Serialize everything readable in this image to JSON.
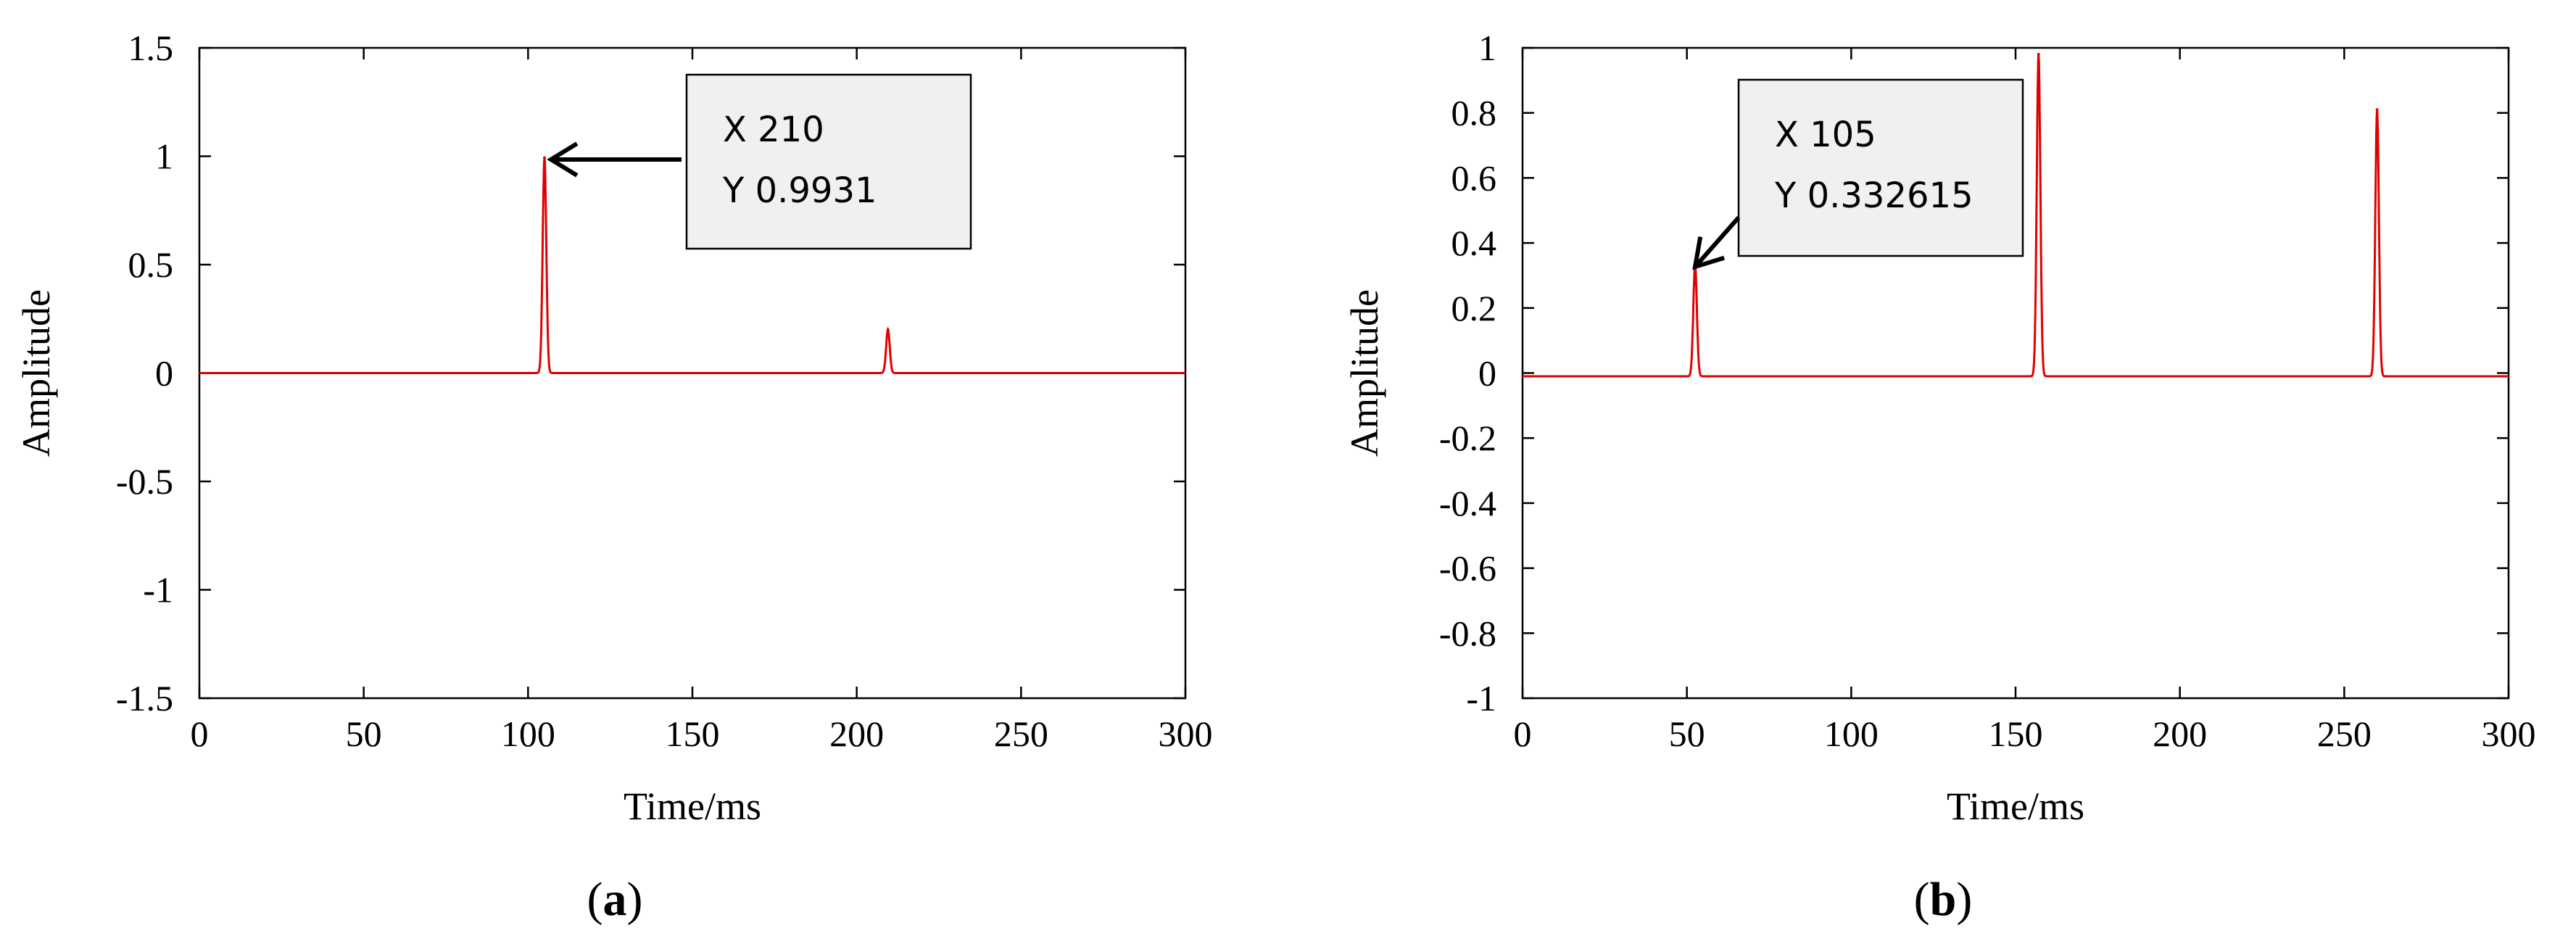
{
  "chart_data": [
    {
      "type": "line",
      "panel_label": "a",
      "xlabel": "Time/ms",
      "ylabel": "Amplitude",
      "xlim": [
        0,
        300
      ],
      "ylim": [
        -1.5,
        1.5
      ],
      "xticks": [
        0,
        50,
        100,
        150,
        200,
        250,
        300
      ],
      "xtick_labels": [
        "0",
        "50",
        "100",
        "150",
        "200",
        "250",
        "300"
      ],
      "yticks": [
        1.5,
        1,
        0.5,
        0,
        -0.5,
        -1,
        -1.5
      ],
      "ytick_labels": [
        "1.5",
        "1",
        "0.5",
        "0",
        "-0.5",
        "-1",
        "-1.5"
      ],
      "series_color": "#e00000",
      "baseline": 0,
      "peaks": [
        {
          "x": 105,
          "y": 0.9931
        },
        {
          "x": 209.5,
          "y": 0.2
        }
      ],
      "annotation": {
        "lines": [
          "X 210",
          "Y 0.9931"
        ],
        "target": {
          "x": 105,
          "y": 0.9931
        }
      },
      "grid": false
    },
    {
      "type": "line",
      "panel_label": "b",
      "xlabel": "Time/ms",
      "ylabel": "Amplitude",
      "xlim": [
        0,
        300
      ],
      "ylim": [
        -1,
        1
      ],
      "xticks": [
        0,
        50,
        100,
        150,
        200,
        250,
        300
      ],
      "xtick_labels": [
        "0",
        "50",
        "100",
        "150",
        "200",
        "250",
        "300"
      ],
      "yticks": [
        1,
        0.8,
        0.6,
        0.4,
        0.2,
        0,
        -0.2,
        -0.4,
        -0.6,
        -0.8,
        -1
      ],
      "ytick_labels": [
        "1",
        "0.8",
        "0.6",
        "0.4",
        "0.2",
        "0",
        "-0.2",
        "-0.4",
        "-0.6",
        "-0.8",
        "-1"
      ],
      "series_color": "#e00000",
      "baseline": -0.01,
      "peaks": [
        {
          "x": 52.5,
          "y": 0.332615
        },
        {
          "x": 157,
          "y": 0.98
        },
        {
          "x": 260,
          "y": 0.81
        }
      ],
      "annotation": {
        "lines": [
          "X 105",
          "Y 0.332615"
        ],
        "target": {
          "x": 52.5,
          "y": 0.332615
        }
      },
      "grid": false
    }
  ]
}
